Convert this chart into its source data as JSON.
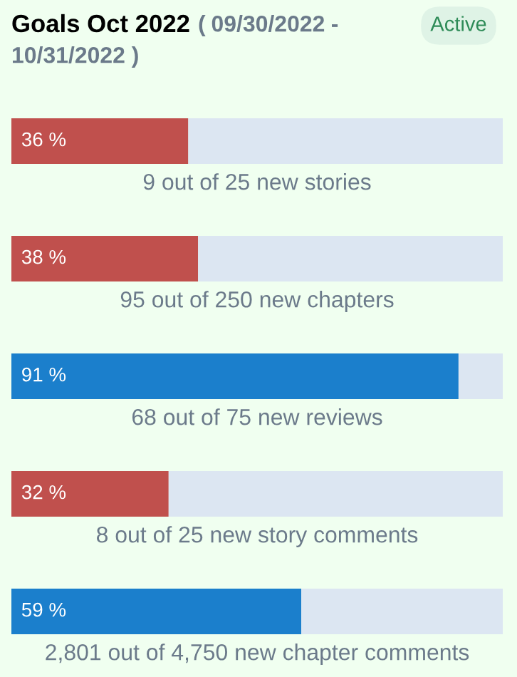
{
  "chart_data": {
    "type": "bar",
    "orientation": "horizontal",
    "stacked": true,
    "title": "Goals Oct 2022",
    "subtitle": "( 09/30/2022 - 10/31/2022 )",
    "annotations": [
      "Active"
    ],
    "categories": [
      "9 out of 25 new stories",
      "95 out of 250 new chapters",
      "68 out of 75 new reviews",
      "8 out of 25 new story comments",
      "2,801 out of 4,750 new chapter comments"
    ],
    "series": [
      {
        "values": [
          36,
          38,
          91,
          32,
          59
        ],
        "colors": [
          "#c0504d",
          "#c0504d",
          "#1b7fcc",
          "#c0504d",
          "#1b7fcc"
        ],
        "value_labels": [
          "36 %",
          "38 %",
          "91 %",
          "32 %",
          "59 %"
        ]
      },
      {
        "values": [
          64,
          62,
          9,
          68,
          41
        ],
        "color": "#dce6f2"
      }
    ],
    "xlim": [
      0,
      100
    ],
    "legend": false
  }
}
